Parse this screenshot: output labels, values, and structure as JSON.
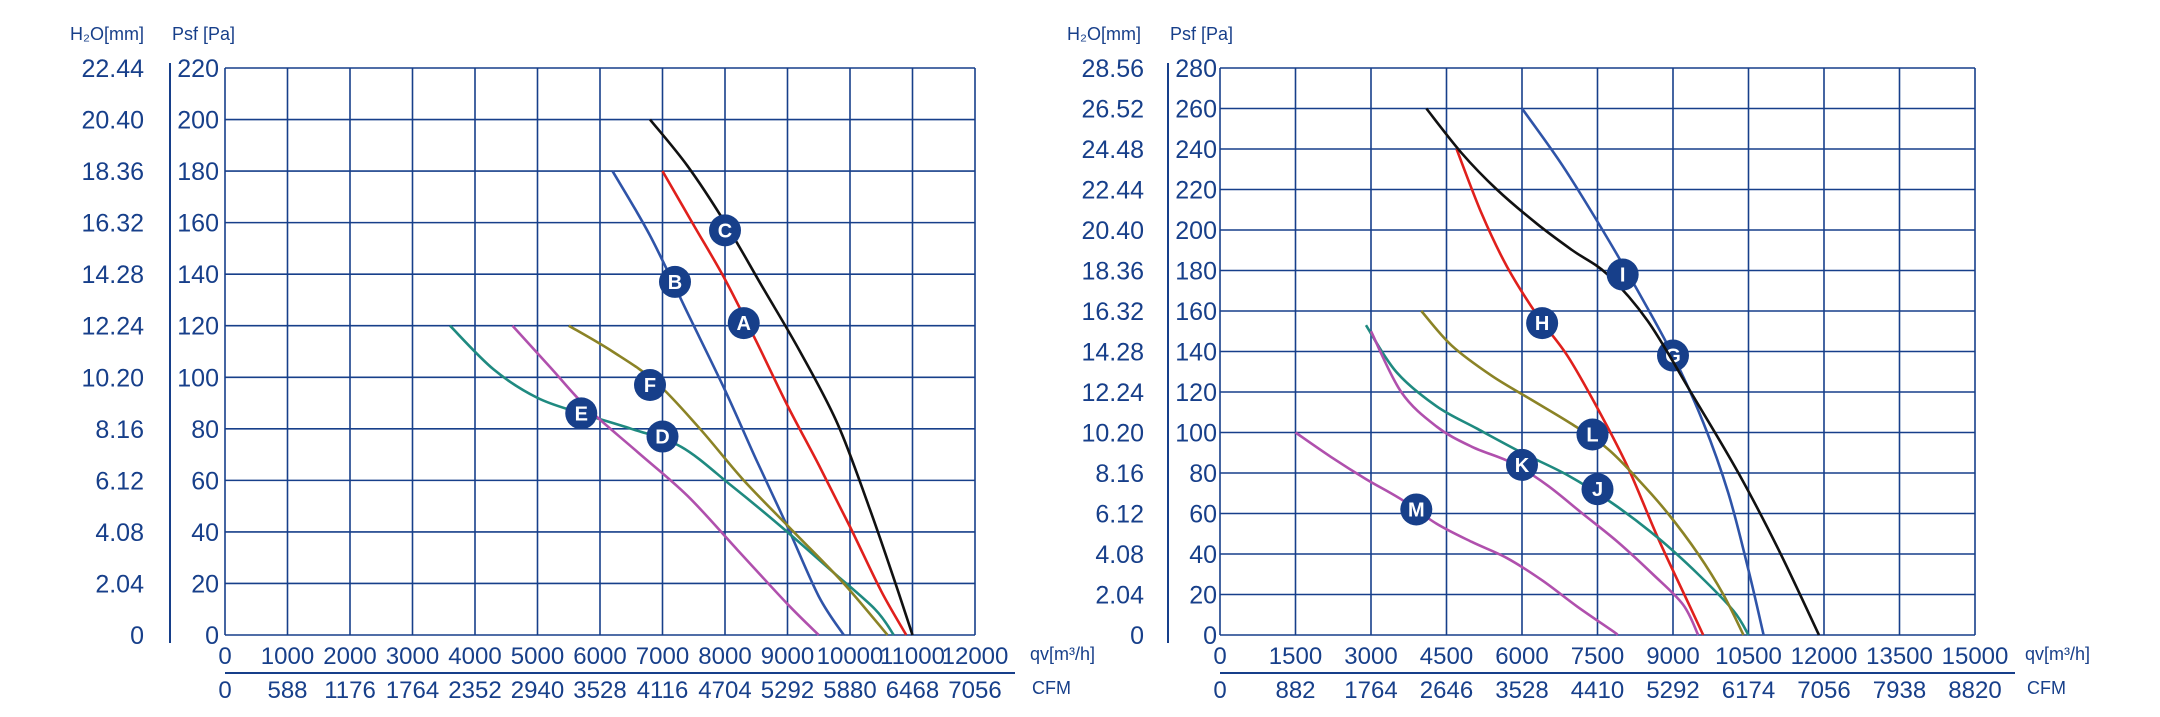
{
  "chart_data": [
    {
      "type": "line",
      "title": "",
      "xlabel": "qv[m³/h]",
      "x2label": "CFM",
      "ylabel": "Psf [Pa]",
      "y2label": "H₂O[mm]",
      "xlim": [
        0,
        12000
      ],
      "ylim": [
        0,
        220
      ],
      "x_ticks": [
        0,
        1000,
        2000,
        3000,
        4000,
        5000,
        6000,
        7000,
        8000,
        9000,
        10000,
        11000,
        12000
      ],
      "x_tick_labels": [
        "0",
        "1000",
        "2000",
        "3000",
        "4000",
        "5000",
        "6000",
        "7000",
        "8000",
        "9000",
        "10000",
        "11000",
        "12000"
      ],
      "x2_tick_labels": [
        "0",
        "588",
        "1176",
        "1764",
        "2352",
        "2940",
        "3528",
        "4116",
        "4704",
        "5292",
        "5880",
        "6468",
        "7056"
      ],
      "y_ticks": [
        0,
        20,
        40,
        60,
        80,
        100,
        120,
        140,
        160,
        180,
        200,
        220
      ],
      "y_tick_labels": [
        "0",
        "20",
        "40",
        "60",
        "80",
        "100",
        "120",
        "140",
        "160",
        "180",
        "200",
        "220"
      ],
      "y2_tick_labels": [
        "0",
        "2.04",
        "4.08",
        "6.12",
        "8.16",
        "10.20",
        "12.24",
        "14.28",
        "16.32",
        "18.36",
        "20.40",
        "22.44"
      ],
      "grid": true,
      "series": [
        {
          "name": "A",
          "color": "#e0201c",
          "marker": [
            8300,
            121
          ],
          "points": [
            [
              7000,
              180
            ],
            [
              7500,
              159
            ],
            [
              8000,
              138
            ],
            [
              8500,
              114
            ],
            [
              9000,
              89
            ],
            [
              9500,
              66
            ],
            [
              10000,
              42
            ],
            [
              10500,
              17
            ],
            [
              10900,
              0
            ]
          ]
        },
        {
          "name": "B",
          "color": "#2f54a8",
          "marker": [
            7200,
            137
          ],
          "points": [
            [
              6200,
              180
            ],
            [
              6800,
              155
            ],
            [
              7400,
              125
            ],
            [
              8000,
              95
            ],
            [
              8500,
              68
            ],
            [
              9000,
              42
            ],
            [
              9500,
              15
            ],
            [
              9900,
              0
            ]
          ]
        },
        {
          "name": "C",
          "color": "#111111",
          "marker": [
            8000,
            157
          ],
          "points": [
            [
              6800,
              200
            ],
            [
              7400,
              182
            ],
            [
              8000,
              160
            ],
            [
              8600,
              135
            ],
            [
              9200,
              110
            ],
            [
              9800,
              82
            ],
            [
              10300,
              50
            ],
            [
              10700,
              22
            ],
            [
              11000,
              0
            ]
          ]
        },
        {
          "name": "D",
          "color": "#1f8a80",
          "marker": [
            7000,
            77
          ],
          "points": [
            [
              3600,
              120
            ],
            [
              4300,
              103
            ],
            [
              5000,
              92
            ],
            [
              5700,
              86
            ],
            [
              6500,
              80
            ],
            [
              7300,
              73
            ],
            [
              8100,
              58
            ],
            [
              8900,
              42
            ],
            [
              9700,
              25
            ],
            [
              10400,
              10
            ],
            [
              10700,
              0
            ]
          ]
        },
        {
          "name": "E",
          "color": "#b050ad",
          "marker": [
            5700,
            86
          ],
          "points": [
            [
              4600,
              120
            ],
            [
              5200,
              104
            ],
            [
              5800,
              88
            ],
            [
              6600,
              71
            ],
            [
              7400,
              54
            ],
            [
              8200,
              33
            ],
            [
              9000,
              12
            ],
            [
              9500,
              0
            ]
          ]
        },
        {
          "name": "F",
          "color": "#8b8326",
          "marker": [
            6800,
            97
          ],
          "points": [
            [
              5500,
              120
            ],
            [
              6200,
              110
            ],
            [
              6900,
              98
            ],
            [
              7600,
              80
            ],
            [
              8300,
              60
            ],
            [
              9100,
              40
            ],
            [
              9900,
              20
            ],
            [
              10600,
              0
            ]
          ]
        }
      ]
    },
    {
      "type": "line",
      "title": "",
      "xlabel": "qv[m³/h]",
      "x2label": "CFM",
      "ylabel": "Psf [Pa]",
      "y2label": "H₂O[mm]",
      "xlim": [
        0,
        15000
      ],
      "ylim": [
        0,
        280
      ],
      "x_ticks": [
        0,
        1500,
        3000,
        4500,
        6000,
        7500,
        9000,
        10500,
        12000,
        13500,
        15000
      ],
      "x_tick_labels": [
        "0",
        "1500",
        "3000",
        "4500",
        "6000",
        "7500",
        "9000",
        "10500",
        "12000",
        "13500",
        "15000"
      ],
      "x2_tick_labels": [
        "0",
        "882",
        "1764",
        "2646",
        "3528",
        "4410",
        "5292",
        "6174",
        "7056",
        "7938",
        "8820"
      ],
      "y_ticks": [
        0,
        20,
        40,
        60,
        80,
        100,
        120,
        140,
        160,
        180,
        200,
        220,
        240,
        260,
        280
      ],
      "y_tick_labels": [
        "0",
        "20",
        "40",
        "60",
        "80",
        "100",
        "120",
        "140",
        "160",
        "180",
        "200",
        "220",
        "240",
        "260",
        "280"
      ],
      "y2_tick_labels": [
        "0",
        "2.04",
        "4.08",
        "6.12",
        "8.16",
        "10.20",
        "12.24",
        "14.28",
        "16.32",
        "18.36",
        "20.40",
        "22.44",
        "24.48",
        "26.52",
        "28.56"
      ],
      "grid": true,
      "series": [
        {
          "name": "G",
          "color": "#2f54a8",
          "marker": [
            9000,
            138
          ],
          "points": [
            [
              6000,
              260
            ],
            [
              6800,
              232
            ],
            [
              7600,
              200
            ],
            [
              8300,
              170
            ],
            [
              9000,
              138
            ],
            [
              9600,
              105
            ],
            [
              10100,
              70
            ],
            [
              10500,
              32
            ],
            [
              10800,
              0
            ]
          ]
        },
        {
          "name": "H",
          "color": "#e0201c",
          "marker": [
            6400,
            154
          ],
          "points": [
            [
              4700,
              240
            ],
            [
              5200,
              208
            ],
            [
              5700,
              182
            ],
            [
              6300,
              158
            ],
            [
              6900,
              138
            ],
            [
              7500,
              112
            ],
            [
              8100,
              83
            ],
            [
              8700,
              48
            ],
            [
              9300,
              16
            ],
            [
              9600,
              0
            ]
          ]
        },
        {
          "name": "I",
          "color": "#111111",
          "marker": [
            8000,
            178
          ],
          "points": [
            [
              4100,
              260
            ],
            [
              4800,
              238
            ],
            [
              5500,
              220
            ],
            [
              6300,
              203
            ],
            [
              7000,
              190
            ],
            [
              7700,
              178
            ],
            [
              8500,
              155
            ],
            [
              9400,
              118
            ],
            [
              10300,
              80
            ],
            [
              11100,
              42
            ],
            [
              11900,
              0
            ]
          ]
        },
        {
          "name": "J",
          "color": "#1f8a80",
          "marker": [
            7500,
            72
          ],
          "points": [
            [
              2900,
              153
            ],
            [
              3500,
              130
            ],
            [
              4300,
              113
            ],
            [
              5100,
              102
            ],
            [
              6000,
              90
            ],
            [
              6900,
              79
            ],
            [
              7800,
              65
            ],
            [
              8700,
              48
            ],
            [
              9500,
              30
            ],
            [
              10200,
              12
            ],
            [
              10500,
              0
            ]
          ]
        },
        {
          "name": "K",
          "color": "#b050ad",
          "marker": [
            6000,
            84
          ],
          "points": [
            [
              3000,
              150
            ],
            [
              3600,
              120
            ],
            [
              4300,
              103
            ],
            [
              5000,
              93
            ],
            [
              5800,
              85
            ],
            [
              6500,
              74
            ],
            [
              7200,
              60
            ],
            [
              7900,
              46
            ],
            [
              8600,
              30
            ],
            [
              9200,
              15
            ],
            [
              9500,
              0
            ]
          ]
        },
        {
          "name": "L",
          "color": "#8b8326",
          "marker": [
            7400,
            99
          ],
          "points": [
            [
              4000,
              160
            ],
            [
              4600,
              143
            ],
            [
              5400,
              128
            ],
            [
              6200,
              116
            ],
            [
              7000,
              104
            ],
            [
              7700,
              92
            ],
            [
              8300,
              77
            ],
            [
              8900,
              60
            ],
            [
              9500,
              40
            ],
            [
              10000,
              20
            ],
            [
              10400,
              0
            ]
          ]
        },
        {
          "name": "M",
          "color": "#b050ad",
          "marker": [
            3900,
            62
          ],
          "points": [
            [
              1500,
              100
            ],
            [
              2200,
              88
            ],
            [
              2900,
              77
            ],
            [
              3600,
              67
            ],
            [
              4300,
              55
            ],
            [
              5000,
              46
            ],
            [
              5700,
              38
            ],
            [
              6400,
              27
            ],
            [
              7100,
              14
            ],
            [
              7800,
              2
            ],
            [
              7900,
              0
            ]
          ]
        }
      ]
    }
  ]
}
